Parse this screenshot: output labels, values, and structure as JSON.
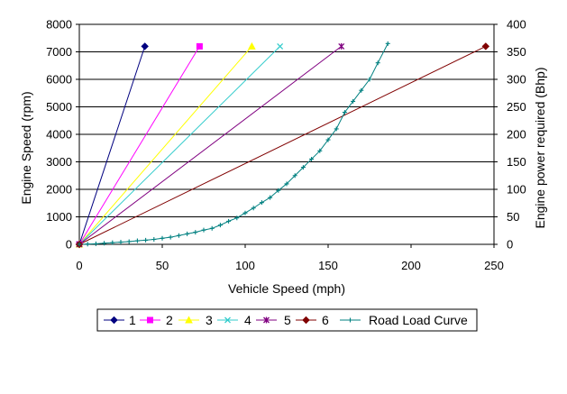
{
  "chart_data": {
    "type": "line",
    "title": "",
    "xlabel": "Vehicle Speed (mph)",
    "ylabel": "Engine Speed (rpm)",
    "y2label": "Engine power required (Bhp)",
    "xlim": [
      0,
      250
    ],
    "ylim": [
      0,
      8000
    ],
    "y2lim": [
      0,
      400
    ],
    "xticks": [
      "0",
      "50",
      "100",
      "150",
      "200",
      "250"
    ],
    "yticks": [
      "0",
      "1000",
      "2000",
      "3000",
      "4000",
      "5000",
      "6000",
      "7000",
      "8000"
    ],
    "y2ticks": [
      "0",
      "50",
      "100",
      "150",
      "200",
      "250",
      "300",
      "350",
      "400"
    ],
    "grid": "horizontal",
    "legend_position": "bottom",
    "series": [
      {
        "name": "1",
        "axis": "left",
        "color": "#000080",
        "marker": "diamond",
        "x": [
          0,
          39.5
        ],
        "y": [
          0,
          7200
        ]
      },
      {
        "name": "2",
        "axis": "left",
        "color": "#FF00FF",
        "marker": "square",
        "x": [
          0,
          72.5
        ],
        "y": [
          0,
          7200
        ]
      },
      {
        "name": "3",
        "axis": "left",
        "color": "#FFFF00",
        "marker": "triangle",
        "x": [
          0,
          104
        ],
        "y": [
          0,
          7200
        ]
      },
      {
        "name": "4",
        "axis": "left",
        "color": "#33CCCC",
        "marker": "x",
        "x": [
          0,
          121
        ],
        "y": [
          0,
          7200
        ]
      },
      {
        "name": "5",
        "axis": "left",
        "color": "#800080",
        "marker": "star",
        "x": [
          0,
          158
        ],
        "y": [
          0,
          7200
        ]
      },
      {
        "name": "6",
        "axis": "left",
        "color": "#800000",
        "marker": "circle",
        "x": [
          0,
          245
        ],
        "y": [
          0,
          7200
        ]
      },
      {
        "name": "Road Load Curve",
        "axis": "right",
        "color": "#008080",
        "marker": "plus",
        "x": [
          0,
          5,
          10,
          15,
          20,
          25,
          30,
          35,
          40,
          45,
          50,
          55,
          60,
          65,
          70,
          75,
          80,
          85,
          90,
          95,
          100,
          105,
          110,
          115,
          120,
          125,
          130,
          135,
          140,
          145,
          150,
          155,
          160,
          165,
          170,
          175,
          180,
          186
        ],
        "y": [
          0,
          0.5,
          1,
          2,
          3,
          4,
          5,
          6.5,
          7.5,
          9,
          11,
          13,
          16,
          19,
          22,
          26,
          29,
          35,
          42,
          48,
          57,
          66,
          76,
          85,
          98,
          110,
          125,
          140,
          155,
          170,
          190,
          210,
          240,
          260,
          280,
          300,
          330,
          365
        ]
      }
    ]
  }
}
